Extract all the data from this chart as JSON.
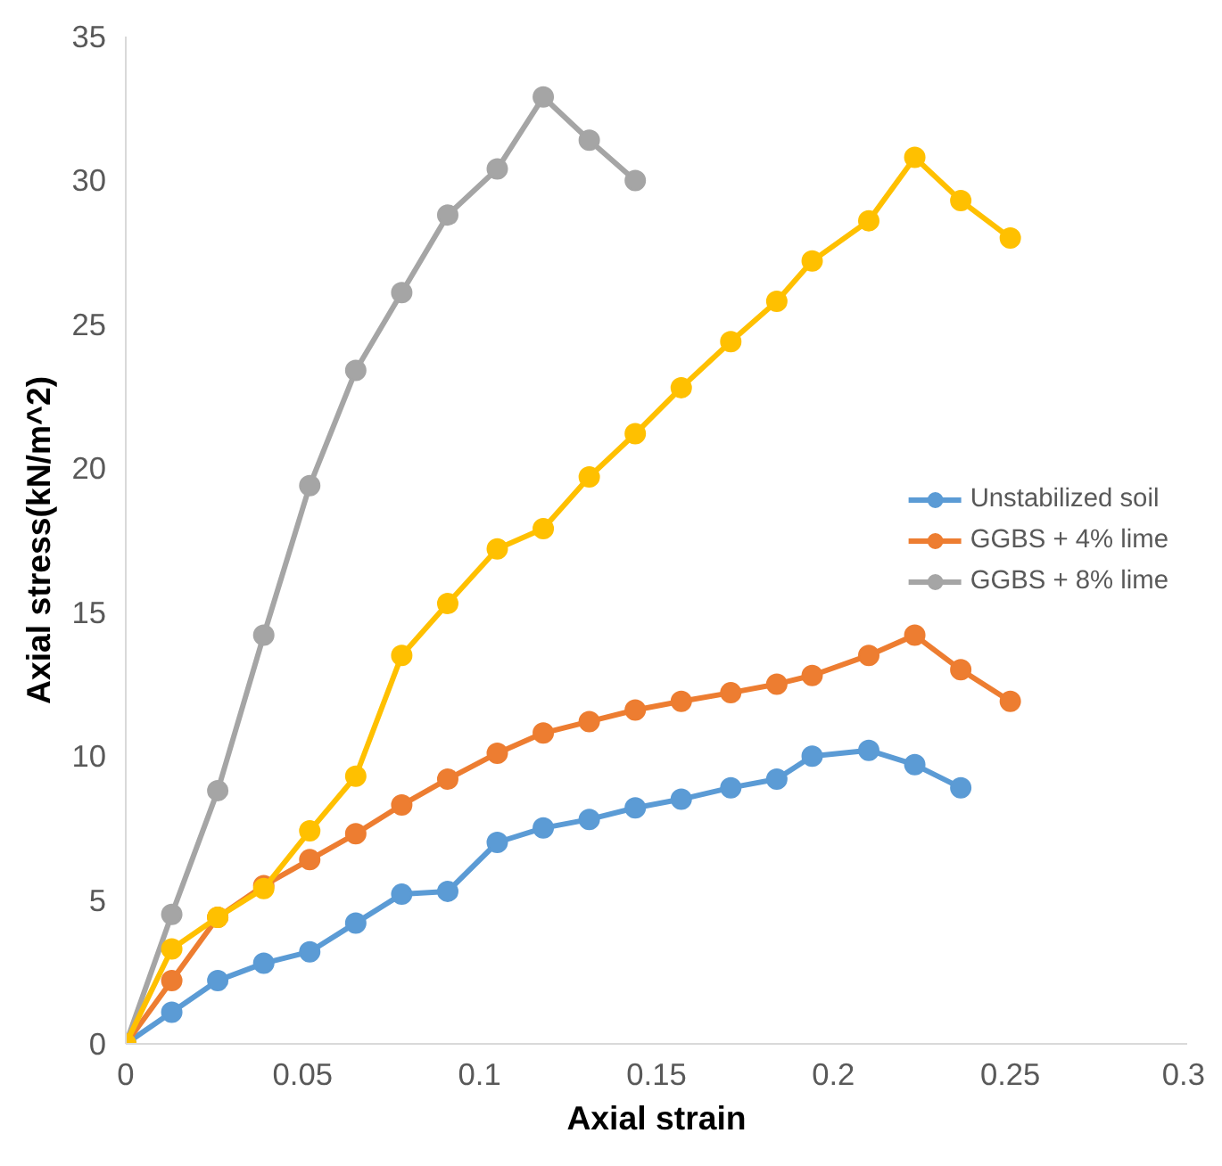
{
  "chart_data": {
    "type": "line",
    "xlabel": "Axial strain",
    "ylabel": "Axial stress(kN/m^2)",
    "xlim": [
      0,
      0.3
    ],
    "ylim": [
      0,
      35
    ],
    "xticks": [
      0,
      0.05,
      0.1,
      0.15,
      0.2,
      0.25,
      0.3
    ],
    "yticks": [
      0,
      5,
      10,
      15,
      20,
      25,
      30,
      35
    ],
    "grid": false,
    "legend": "right",
    "marker": "circle",
    "line_style": "solid",
    "series": [
      {
        "name": "Unstabilized soil",
        "color": "#5b9bd5",
        "x": [
          0,
          0.013,
          0.026,
          0.039,
          0.052,
          0.065,
          0.078,
          0.091,
          0.105,
          0.118,
          0.131,
          0.144,
          0.157,
          0.171,
          0.184,
          0.194,
          0.21,
          0.223,
          0.236
        ],
        "values": [
          0,
          1.1,
          2.2,
          2.8,
          3.2,
          4.2,
          5.2,
          5.3,
          7.0,
          7.5,
          7.8,
          8.2,
          8.5,
          8.9,
          9.2,
          10.0,
          10.2,
          9.7,
          8.9
        ]
      },
      {
        "name": "GGBS + 4% lime",
        "color": "#ed7d31",
        "x": [
          0,
          0.013,
          0.026,
          0.039,
          0.052,
          0.065,
          0.078,
          0.091,
          0.105,
          0.118,
          0.131,
          0.144,
          0.157,
          0.171,
          0.184,
          0.194,
          0.21,
          0.223,
          0.236,
          0.25
        ],
        "values": [
          0,
          2.2,
          4.4,
          5.5,
          6.4,
          7.3,
          8.3,
          9.2,
          10.1,
          10.8,
          11.2,
          11.6,
          11.9,
          12.2,
          12.5,
          12.8,
          13.5,
          14.2,
          13.0,
          11.9
        ]
      },
      {
        "name": "GGBS + 8% lime",
        "color": "#a5a5a5",
        "x": [
          0,
          0.013,
          0.026,
          0.039,
          0.052,
          0.065,
          0.078,
          0.091,
          0.105,
          0.118,
          0.131,
          0.144
        ],
        "values": [
          0,
          4.5,
          8.8,
          14.2,
          19.4,
          23.4,
          26.1,
          28.8,
          30.4,
          32.9,
          31.4,
          30.0
        ]
      },
      {
        "color": "#ffc000",
        "x": [
          0,
          0.013,
          0.026,
          0.039,
          0.052,
          0.065,
          0.078,
          0.091,
          0.105,
          0.118,
          0.131,
          0.144,
          0.157,
          0.171,
          0.184,
          0.194,
          0.21,
          0.223,
          0.236,
          0.25
        ],
        "values": [
          0,
          3.3,
          4.4,
          5.4,
          7.4,
          9.3,
          13.5,
          15.3,
          17.2,
          17.9,
          19.7,
          21.2,
          22.8,
          24.4,
          25.8,
          27.2,
          28.6,
          30.8,
          29.3,
          28.0
        ]
      }
    ]
  }
}
